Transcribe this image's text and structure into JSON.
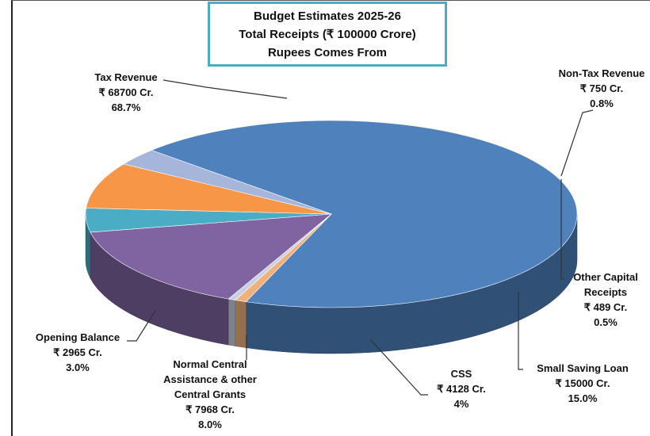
{
  "chart_data": {
    "type": "pie",
    "title": "Budget Estimates 2025-26",
    "subtitle": "Total Receipts (₹ 100000 Crore)",
    "caption": "Rupees Comes From",
    "unit": "Cr.",
    "total": 100000,
    "slices": [
      {
        "name": "Tax Revenue",
        "value": 68700,
        "value_label": "₹ 68700 Cr.",
        "percent_label": "68.7%",
        "color": "#4f81bd"
      },
      {
        "name": "Non-Tax Revenue",
        "value": 750,
        "value_label": "₹ 750 Cr.",
        "percent_label": "0.8%",
        "color": "#f0b27a"
      },
      {
        "name": "Other Capital Receipts",
        "value": 489,
        "value_label": "₹ 489 Cr.",
        "percent_label": "0.5%",
        "color": "#c9d0e3"
      },
      {
        "name": "Small Saving Loan",
        "value": 15000,
        "value_label": "₹ 15000 Cr.",
        "percent_label": "15.0%",
        "color": "#8064a2"
      },
      {
        "name": "CSS",
        "value": 4128,
        "value_label": "₹ 4128 Cr.",
        "percent_label": "4%",
        "color": "#4bacc6"
      },
      {
        "name": "Normal Central Assistance & other Central Grants",
        "value": 7968,
        "value_label": "₹ 7968 Cr.",
        "percent_label": "8.0%",
        "color": "#f79646"
      },
      {
        "name": "Opening Balance",
        "value": 2965,
        "value_label": "₹ 2965 Cr.",
        "percent_label": "3.0%",
        "color": "#a6b6db"
      }
    ]
  },
  "labels": {
    "tax": {
      "l1": "Tax Revenue",
      "l2": "₹ 68700 Cr.",
      "l3": "68.7%"
    },
    "nontax": {
      "l1": "Non-Tax Revenue",
      "l2": "₹ 750 Cr.",
      "l3": "0.8%"
    },
    "ocr": {
      "l1": "Other Capital",
      "l2": "Receipts",
      "l3": "₹ 489 Cr.",
      "l4": "0.5%"
    },
    "ssl": {
      "l1": "Small Saving Loan",
      "l2": "₹ 15000 Cr.",
      "l3": "15.0%"
    },
    "css": {
      "l1": "CSS",
      "l2": "₹ 4128 Cr.",
      "l3": "4%"
    },
    "nca": {
      "l1": "Normal Central",
      "l2": "Assistance & other",
      "l3": "Central Grants",
      "l4": "₹ 7968 Cr.",
      "l5": "8.0%"
    },
    "ob": {
      "l1": "Opening Balance",
      "l2": "₹ 2965 Cr.",
      "l3": "3.0%"
    }
  }
}
